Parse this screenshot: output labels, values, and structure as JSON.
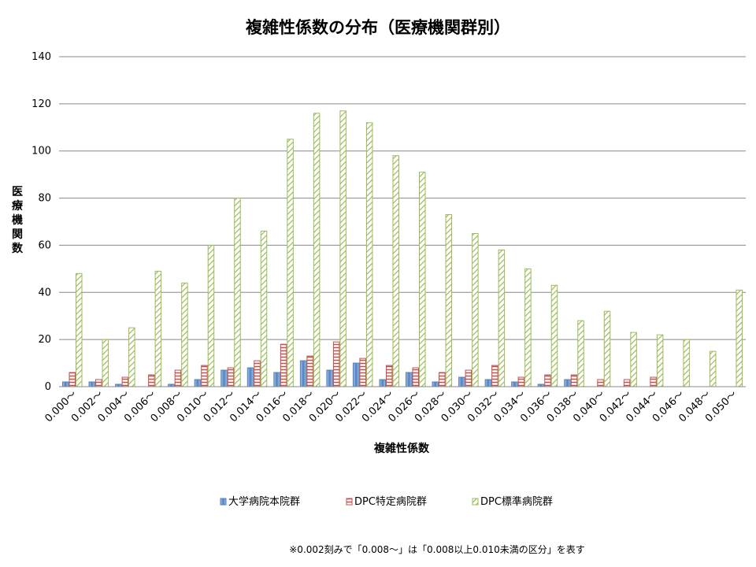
{
  "chart_data": {
    "type": "bar",
    "title": "複雑性係数の分布（医療機関群別）",
    "xlabel": "複雑性係数",
    "ylabel": "医療機関数",
    "ylim": [
      0,
      140
    ],
    "yticks": [
      0,
      20,
      40,
      60,
      80,
      100,
      120,
      140
    ],
    "grid": true,
    "legend_position": "bottom",
    "categories": [
      "0.000～",
      "0.002～",
      "0.004～",
      "0.006～",
      "0.008～",
      "0.010～",
      "0.012～",
      "0.014～",
      "0.016～",
      "0.018～",
      "0.020～",
      "0.022～",
      "0.024～",
      "0.026～",
      "0.028～",
      "0.030～",
      "0.032～",
      "0.034～",
      "0.036～",
      "0.038～",
      "0.040～",
      "0.042～",
      "0.044～",
      "0.046～",
      "0.048～",
      "0.050～"
    ],
    "series": [
      {
        "name": "大学病院本院群",
        "color": "#4f81bd",
        "pattern": "solid",
        "values": [
          2,
          2,
          1,
          0,
          1,
          3,
          7,
          8,
          6,
          11,
          7,
          10,
          3,
          6,
          2,
          4,
          3,
          2,
          1,
          3,
          0,
          0,
          0,
          0,
          0,
          0
        ]
      },
      {
        "name": "DPC特定病院群",
        "color": "#c0504d",
        "pattern": "horizontal-lines",
        "values": [
          6,
          3,
          4,
          5,
          7,
          9,
          8,
          11,
          18,
          13,
          19,
          12,
          9,
          8,
          6,
          7,
          9,
          4,
          5,
          5,
          3,
          3,
          4,
          0,
          0,
          0
        ]
      },
      {
        "name": "DPC標準病院群",
        "color": "#9bbb59",
        "pattern": "diagonal-lines",
        "values": [
          48,
          20,
          25,
          49,
          44,
          60,
          80,
          66,
          105,
          116,
          117,
          112,
          98,
          91,
          73,
          65,
          58,
          50,
          43,
          28,
          32,
          23,
          22,
          20,
          15,
          41
        ]
      }
    ],
    "footnote": "※0.002刻みで「0.008～」は「0.008以上0.010未満の区分」を表す"
  }
}
